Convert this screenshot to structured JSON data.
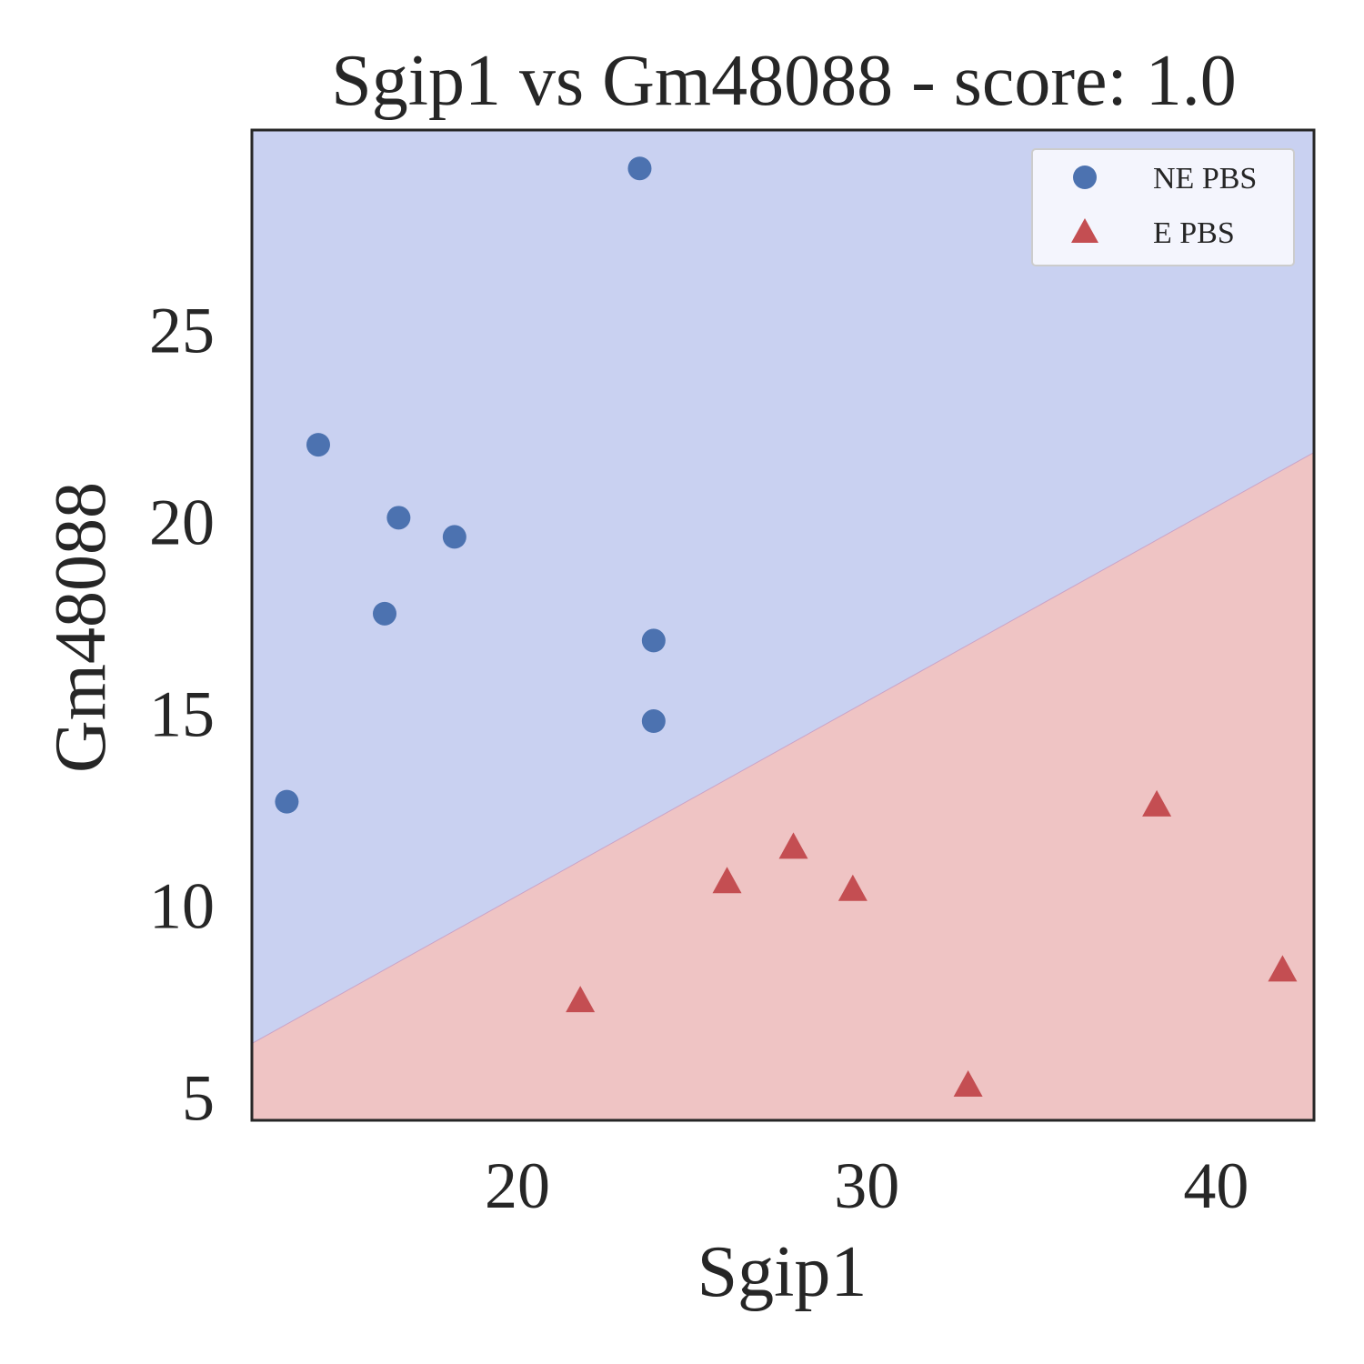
{
  "chart_data": {
    "type": "scatter",
    "title": "Sgip1 vs Gm48088 - score: 1.0",
    "xlabel": "Sgip1",
    "ylabel": "Gm48088",
    "xlim": [
      12.4,
      42.8
    ],
    "ylim": [
      4.4,
      30.2
    ],
    "xticks": [
      20,
      30,
      40
    ],
    "yticks": [
      5,
      10,
      15,
      20,
      25
    ],
    "grid": false,
    "legend_position": "top-right",
    "series": [
      {
        "name": "NE PBS",
        "marker": "circle",
        "color": "#4c72b0",
        "points": [
          {
            "x": 23.5,
            "y": 29.2
          },
          {
            "x": 14.3,
            "y": 22.0
          },
          {
            "x": 16.6,
            "y": 20.1
          },
          {
            "x": 18.2,
            "y": 19.6
          },
          {
            "x": 16.2,
            "y": 17.6
          },
          {
            "x": 23.9,
            "y": 16.9
          },
          {
            "x": 23.9,
            "y": 14.8
          },
          {
            "x": 13.4,
            "y": 12.7
          }
        ]
      },
      {
        "name": "E PBS",
        "marker": "triangle",
        "color": "#c44e52",
        "points": [
          {
            "x": 21.8,
            "y": 7.5
          },
          {
            "x": 26.0,
            "y": 10.6
          },
          {
            "x": 27.9,
            "y": 11.5
          },
          {
            "x": 29.6,
            "y": 10.4
          },
          {
            "x": 32.9,
            "y": 5.3
          },
          {
            "x": 38.3,
            "y": 12.6
          },
          {
            "x": 41.9,
            "y": 8.3
          }
        ]
      }
    ],
    "decision_regions": {
      "upper_color": "#c9d1f1",
      "lower_color": "#efc4c4",
      "boundary": [
        {
          "x": 12.4,
          "y": 6.4
        },
        {
          "x": 42.8,
          "y": 21.8
        }
      ]
    }
  }
}
